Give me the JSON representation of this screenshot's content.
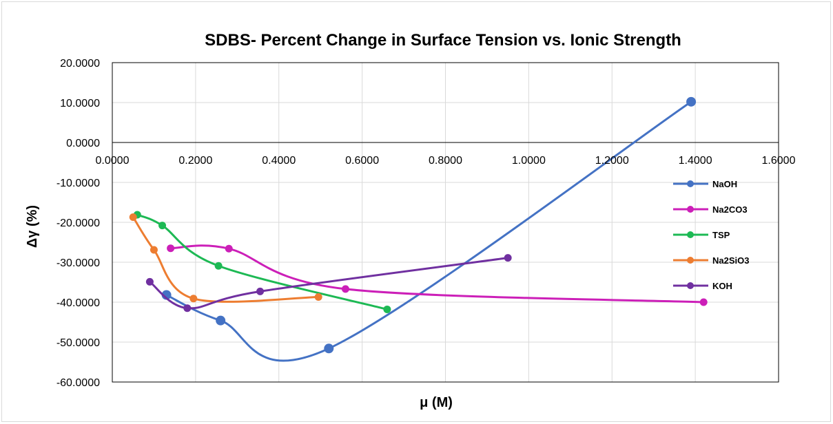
{
  "chart_data": {
    "type": "scatter",
    "title": "SDBS- Percent Change in Surface Tension vs. Ionic Strength",
    "xlabel": "μ (M)",
    "ylabel": "Δγ (%)",
    "xlim": [
      0,
      1.6
    ],
    "ylim": [
      -60,
      20
    ],
    "x_ticks": [
      0,
      0.2,
      0.4,
      0.6,
      0.8,
      1.0,
      1.2,
      1.4,
      1.6
    ],
    "y_ticks": [
      20,
      10,
      0,
      -10,
      -20,
      -30,
      -40,
      -50,
      -60
    ],
    "x_tick_labels": [
      "0.0000",
      "0.2000",
      "0.4000",
      "0.6000",
      "0.8000",
      "1.0000",
      "1.2000",
      "1.4000",
      "1.6000"
    ],
    "y_tick_labels": [
      "20.0000",
      "10.0000",
      "0.0000",
      "-10.0000",
      "-20.0000",
      "-30.0000",
      "-40.0000",
      "-50.0000",
      "-60.0000"
    ],
    "grid": true,
    "smooth_lines": true,
    "legend_position": "right",
    "series": [
      {
        "name": "NaOH",
        "color": "#4472C4",
        "marker_size": "large",
        "x": [
          0.13,
          0.26,
          0.52,
          1.39
        ],
        "y": [
          -38.2,
          -44.6,
          -51.6,
          10.2
        ]
      },
      {
        "name": "Na2CO3",
        "color": "#CC1FB8",
        "x": [
          0.14,
          0.28,
          0.56,
          1.42
        ],
        "y": [
          -26.5,
          -26.6,
          -36.7,
          -40.0
        ]
      },
      {
        "name": "TSP",
        "color": "#1DB954",
        "x": [
          0.06,
          0.12,
          0.255,
          0.66
        ],
        "y": [
          -18.1,
          -20.8,
          -30.9,
          -41.8
        ]
      },
      {
        "name": "Na2SiO3",
        "color": "#ED7D31",
        "x": [
          0.05,
          0.1,
          0.195,
          0.495
        ],
        "y": [
          -18.7,
          -26.9,
          -39.1,
          -38.7
        ]
      },
      {
        "name": "KOH",
        "color": "#7030A0",
        "x": [
          0.09,
          0.18,
          0.355,
          0.95
        ],
        "y": [
          -34.9,
          -41.5,
          -37.3,
          -28.9
        ]
      }
    ]
  }
}
